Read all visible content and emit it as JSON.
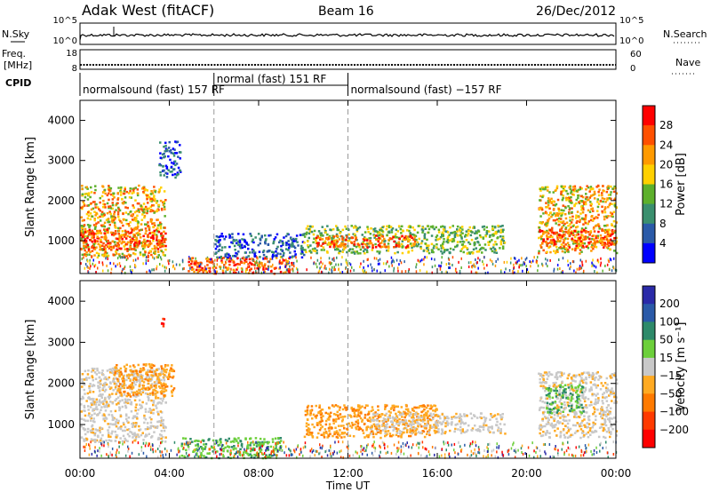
{
  "header": {
    "station": "Adak West (fitACF)",
    "beam": "Beam 16",
    "date": "26/Dec/2012"
  },
  "top_panels": {
    "nsky_label": "N.Sky",
    "nsky_ticks": [
      "10^5",
      "10^0"
    ],
    "nsearch_label": "N.Search",
    "freq_label_1": "Freq.",
    "freq_label_2": "[MHz]",
    "freq_ticks": [
      "18",
      "8"
    ],
    "nave_ticks": [
      "60",
      "0"
    ],
    "nave_label": "Nave",
    "cpid_label": "CPID",
    "cpid_segments": [
      {
        "label": "normalsound (fast) 157 RF",
        "start_hour": 0.0,
        "end_hour": 6.0
      },
      {
        "label": "normal (fast) 151 RF",
        "start_hour": 6.0,
        "end_hour": 12.0
      },
      {
        "label": "normalsound (fast) −157 RF",
        "start_hour": 12.0,
        "end_hour": 24.0
      }
    ]
  },
  "panels": {
    "power": {
      "ylabel": "Slant Range [km]",
      "cbar_label": "Power [dB]",
      "cbar_ticks": [
        "28",
        "24",
        "20",
        "16",
        "12",
        "8",
        "4"
      ],
      "cbar_colors": [
        "#ff0000",
        "#ff5000",
        "#ff9a00",
        "#ffd000",
        "#5db02c",
        "#3a8f6e",
        "#2a5aa8",
        "#0000ff"
      ]
    },
    "velocity": {
      "ylabel": "Slant Range [km]",
      "cbar_label": "Velocity [m s⁻¹]",
      "cbar_ticks": [
        "200",
        "100",
        "50",
        "15",
        "−15",
        "−50",
        "−100",
        "−200"
      ],
      "cbar_colors": [
        "#2a2aa8",
        "#2a5aa8",
        "#2e8a6a",
        "#6ccf3a",
        "#c8c8c8",
        "#ffaa22",
        "#ff7a00",
        "#ff3a00",
        "#ff0000"
      ]
    }
  },
  "xaxis": {
    "title": "Time UT",
    "ticks": [
      "00:00",
      "04:00",
      "08:00",
      "12:00",
      "16:00",
      "20:00",
      "00:00"
    ]
  },
  "chart_data": [
    {
      "type": "heatmap",
      "name": "power",
      "x_unit": "hour UT",
      "ylim": [
        180,
        4500
      ],
      "yticks": [
        1000,
        2000,
        3000,
        4000
      ],
      "xlim": [
        0,
        24
      ],
      "regions": [
        {
          "t0": 0.0,
          "t1": 3.8,
          "r0": 600,
          "r1": 2400,
          "level": "strong"
        },
        {
          "t0": 0.0,
          "t1": 3.8,
          "r0": 800,
          "r1": 1300,
          "level": "peak"
        },
        {
          "t0": 3.5,
          "t1": 4.5,
          "r0": 2600,
          "r1": 3500,
          "level": "weak"
        },
        {
          "t0": 4.8,
          "t1": 9.5,
          "r0": 200,
          "r1": 600,
          "level": "peak"
        },
        {
          "t0": 6.0,
          "t1": 10.0,
          "r0": 600,
          "r1": 1200,
          "level": "weak"
        },
        {
          "t0": 10.0,
          "t1": 19.0,
          "r0": 700,
          "r1": 1400,
          "level": "medium"
        },
        {
          "t0": 10.5,
          "t1": 15.0,
          "r0": 850,
          "r1": 1150,
          "level": "peak"
        },
        {
          "t0": 20.5,
          "t1": 24.0,
          "r0": 700,
          "r1": 2400,
          "level": "strong"
        },
        {
          "t0": 20.5,
          "t1": 24.0,
          "r0": 850,
          "r1": 1300,
          "level": "peak"
        }
      ]
    },
    {
      "type": "heatmap",
      "name": "velocity",
      "x_unit": "hour UT",
      "ylim": [
        180,
        4500
      ],
      "yticks": [
        1000,
        2000,
        3000,
        4000
      ],
      "xlim": [
        0,
        24
      ],
      "regions": [
        {
          "t0": 0.0,
          "t1": 3.8,
          "r0": 600,
          "r1": 2400,
          "level": "grey"
        },
        {
          "t0": 1.5,
          "t1": 4.2,
          "r0": 1700,
          "r1": 2500,
          "level": "orange"
        },
        {
          "t0": 3.6,
          "t1": 3.9,
          "r0": 3400,
          "r1": 3600,
          "level": "red"
        },
        {
          "t0": 4.5,
          "t1": 9.0,
          "r0": 200,
          "r1": 700,
          "level": "green"
        },
        {
          "t0": 10.0,
          "t1": 16.0,
          "r0": 700,
          "r1": 1500,
          "level": "orange"
        },
        {
          "t0": 13.0,
          "t1": 19.0,
          "r0": 800,
          "r1": 1300,
          "level": "grey"
        },
        {
          "t0": 20.5,
          "t1": 24.0,
          "r0": 700,
          "r1": 2300,
          "level": "grey"
        },
        {
          "t0": 20.8,
          "t1": 22.5,
          "r0": 1300,
          "r1": 2000,
          "level": "green"
        }
      ]
    }
  ]
}
